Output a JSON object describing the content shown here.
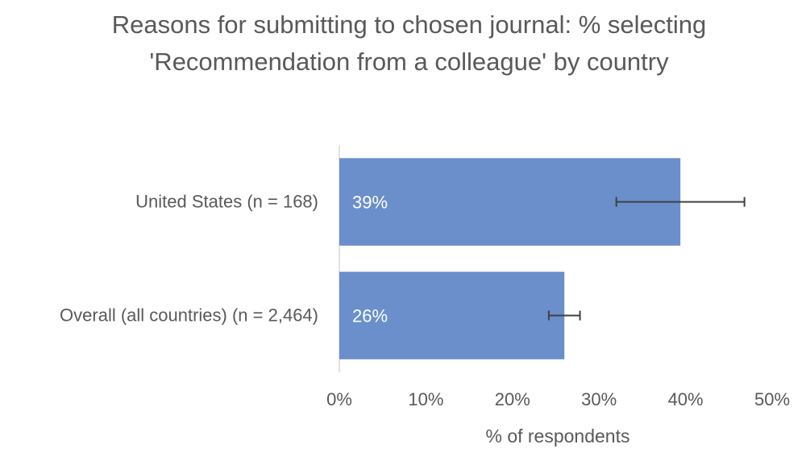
{
  "chart_data": {
    "type": "bar",
    "orientation": "horizontal",
    "title": "Reasons for submitting to chosen journal: % selecting 'Recommendation from a colleague' by country",
    "categories": [
      "United States (n = 168)",
      "Overall (all countries) (n = 2,464)"
    ],
    "values": [
      39.4,
      26
    ],
    "value_labels": [
      "39%",
      "26%"
    ],
    "errors": [
      7.4,
      1.8
    ],
    "color": "#6a8fcb",
    "error_color": "#404040",
    "xlabel": "% of respondents",
    "xlim": [
      0,
      50
    ],
    "xticks": [
      {
        "value": 0,
        "label": "0%"
      },
      {
        "value": 10,
        "label": "10%"
      },
      {
        "value": 20,
        "label": "20%"
      },
      {
        "value": 30,
        "label": "30%"
      },
      {
        "value": 40,
        "label": "40%"
      },
      {
        "value": 50,
        "label": "50%"
      }
    ],
    "grid": false
  }
}
